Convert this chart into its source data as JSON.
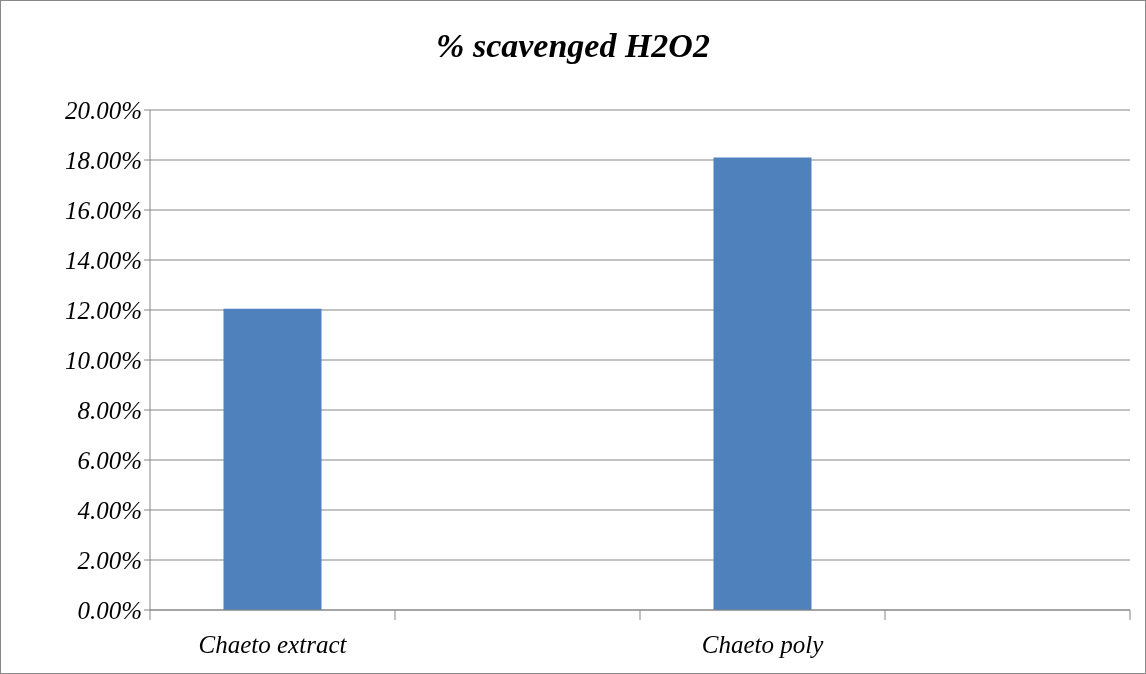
{
  "chart_data": {
    "type": "bar",
    "title": "%  scavenged H2O2",
    "categories": [
      "Chaeto extract",
      null,
      "Chaeto poly",
      null
    ],
    "values": [
      12.05,
      null,
      18.1,
      null
    ],
    "color": "#4f81bd",
    "ylim": [
      0,
      20
    ],
    "yticks": [
      {
        "value": 0,
        "label": "0.00%"
      },
      {
        "value": 2,
        "label": "2.00%"
      },
      {
        "value": 4,
        "label": "4.00%"
      },
      {
        "value": 6,
        "label": "6.00%"
      },
      {
        "value": 8,
        "label": "8.00%"
      },
      {
        "value": 10,
        "label": "10.00%"
      },
      {
        "value": 12,
        "label": "12.00%"
      },
      {
        "value": 14,
        "label": "14.00%"
      },
      {
        "value": 16,
        "label": "16.00%"
      },
      {
        "value": 18,
        "label": "18.00%"
      },
      {
        "value": 20,
        "label": "20.00%"
      }
    ],
    "grid": "y"
  }
}
